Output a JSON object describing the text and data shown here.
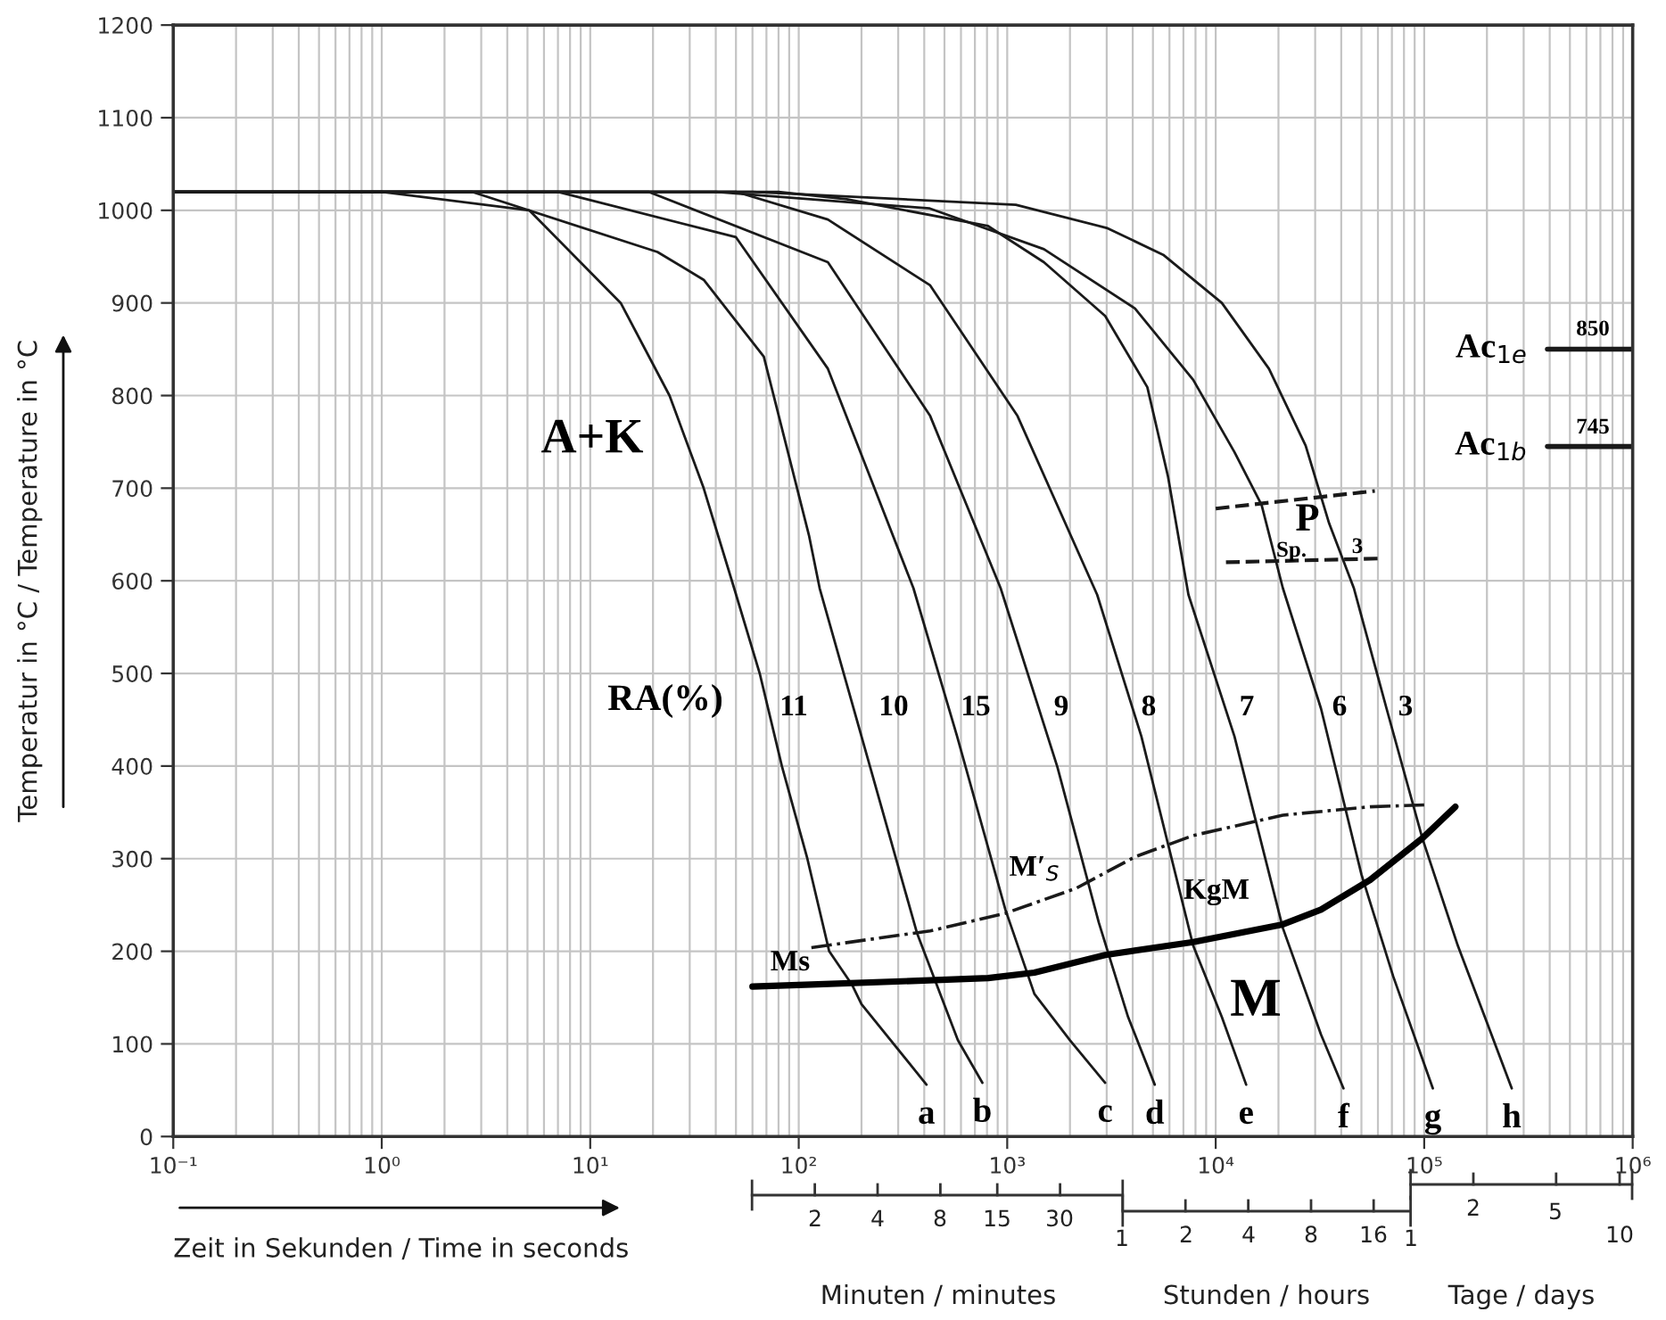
{
  "chart_data": {
    "type": "line",
    "log": "x",
    "grid": true,
    "xlabel": "Zeit in Sekunden / Time in seconds",
    "ylabel": "Temperatur in °C / Temperature in °C",
    "xlim": [
      0.1,
      1000000
    ],
    "ylim": [
      0,
      1200
    ],
    "xticks": [
      {
        "value": 0.1,
        "label": "10⁻¹"
      },
      {
        "value": 1,
        "label": "10⁰"
      },
      {
        "value": 10,
        "label": "10¹"
      },
      {
        "value": 100,
        "label": "10²"
      },
      {
        "value": 1000,
        "label": "10³"
      },
      {
        "value": 10000,
        "label": "10⁴"
      },
      {
        "value": 100000,
        "label": "10⁵"
      },
      {
        "value": 1000000,
        "label": "10⁶"
      }
    ],
    "yticks": [
      0,
      100,
      200,
      300,
      400,
      500,
      600,
      700,
      800,
      900,
      1000,
      1100,
      1200
    ],
    "series": [
      {
        "name": "a",
        "color": "#1a1a1a",
        "x": [
          0.1,
          1,
          5.1,
          14,
          24,
          35,
          49,
          65,
          83,
          110,
          140,
          180,
          200,
          410
        ],
        "values": [
          1020,
          1020,
          1000,
          900,
          800,
          700,
          592,
          500,
          400,
          300,
          200,
          164,
          143,
          56
        ]
      },
      {
        "name": "b",
        "color": "#1a1a1a",
        "x": [
          0.1,
          2.7,
          21,
          35,
          68,
          112,
          126,
          220,
          370,
          580,
          760
        ],
        "values": [
          1020,
          1020,
          955,
          925,
          842,
          649,
          592,
          399,
          219,
          104,
          58
        ]
      },
      {
        "name": "c",
        "color": "#1a1a1a",
        "x": [
          0.1,
          7,
          50,
          138,
          355,
          575,
          980,
          1350,
          2000,
          2950
        ],
        "values": [
          1020,
          1020,
          971,
          829,
          592,
          432,
          245,
          154,
          104,
          58
        ]
      },
      {
        "name": "d",
        "color": "#1a1a1a",
        "x": [
          0.1,
          19,
          138,
          427,
          930,
          1740,
          2750,
          3800,
          5100
        ],
        "values": [
          1020,
          1020,
          944,
          778,
          592,
          399,
          231,
          129,
          56
        ]
      },
      {
        "name": "e",
        "color": "#1a1a1a",
        "x": [
          0.1,
          50,
          138,
          427,
          1120,
          2700,
          4400,
          7800,
          10700,
          14000
        ],
        "values": [
          1020,
          1020,
          990,
          919,
          778,
          585,
          432,
          206,
          129,
          56
        ]
      },
      {
        "name": "f",
        "color": "#1a1a1a",
        "x": [
          0.1,
          80,
          170,
          810,
          1500,
          2950,
          4700,
          5900,
          7400,
          12300,
          21000,
          32000,
          41000
        ],
        "values": [
          1020,
          1020,
          1012,
          983,
          944,
          886,
          809,
          713,
          585,
          432,
          225,
          110,
          52
        ]
      },
      {
        "name": "g",
        "color": "#1a1a1a",
        "x": [
          0.1,
          40,
          425,
          1500,
          4100,
          7800,
          12300,
          16600,
          21000,
          32000,
          50000,
          71000,
          110000
        ],
        "values": [
          1020,
          1020,
          1002,
          958,
          894,
          817,
          739,
          682,
          592,
          462,
          283,
          173,
          52
        ]
      },
      {
        "name": "h",
        "color": "#1a1a1a",
        "x": [
          0.1,
          60,
          1100,
          3000,
          5600,
          10700,
          18000,
          27000,
          35000,
          46000,
          66000,
          98000,
          145000,
          200000,
          263000
        ],
        "values": [
          1020,
          1020,
          1006,
          981,
          952,
          900,
          829,
          746,
          662,
          592,
          462,
          322,
          206,
          123,
          52
        ]
      },
      {
        "color": "#000000",
        "x": [
          60,
          115,
          810,
          1350,
          2950,
          7800,
          21000,
          32000,
          55000,
          98000,
          141000
        ],
        "values": [
          162,
          164,
          171,
          177,
          196,
          210,
          229,
          245,
          277,
          322,
          356
        ]
      },
      {
        "color": "#1a1a1a",
        "line_style": "dashdot",
        "x": [
          115,
          427,
          980,
          2140,
          4100,
          7800,
          21000,
          55000,
          100000
        ],
        "values": [
          204,
          222,
          241,
          268,
          302,
          325,
          347,
          356,
          358
        ]
      },
      {
        "color": "#1a1a1a",
        "line_style": "dashed",
        "x": [
          10000,
          58000
        ],
        "values": [
          678,
          697
        ]
      },
      {
        "color": "#1a1a1a",
        "line_style": "dashed",
        "x": [
          11200,
          60000
        ],
        "values": [
          620,
          624
        ]
      },
      {
        "name": "Ac$_{1e}$",
        "color": "#1a1a1a",
        "x": [
          390000,
          1000000
        ],
        "values": [
          850,
          850
        ]
      },
      {
        "name": "Ac$_{1b}$",
        "color": "#1a1a1a",
        "x": [
          390000,
          1000000
        ],
        "values": [
          745,
          745
        ]
      }
    ],
    "annotations": [
      "A+K",
      "M",
      "RA(%)",
      "11",
      "10",
      "15",
      "9",
      "8",
      "7",
      "6",
      "3",
      "Ms",
      "M′$_{S}$",
      "KgM",
      "P",
      "Sp.",
      "3",
      "850",
      "745",
      "2",
      "4",
      "8",
      "15",
      "30",
      "1",
      "2",
      "4",
      "8",
      "16",
      "1",
      "2",
      "5",
      "10",
      "Minuten / minutes",
      "Stunden / hours",
      "Tage / days"
    ]
  }
}
